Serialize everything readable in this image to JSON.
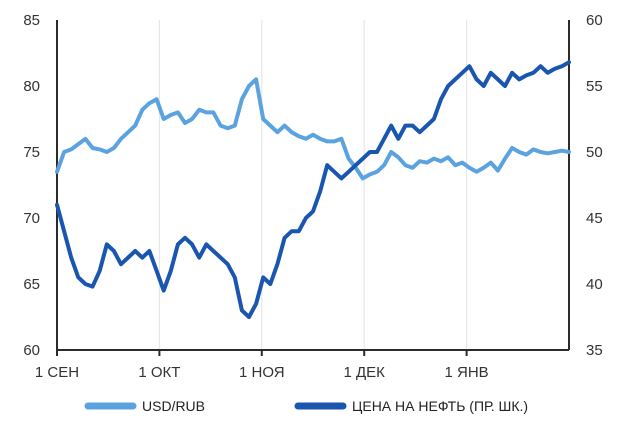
{
  "chart_data": {
    "type": "line",
    "title": "",
    "xlabel": "",
    "ylabel": "",
    "x_ticks": [
      "1 СЕН",
      "1 ОКТ",
      "1 НОЯ",
      "1 ДЕК",
      "1 ЯНВ"
    ],
    "y_left_ticks": [
      "60",
      "65",
      "70",
      "75",
      "80",
      "85"
    ],
    "y_right_ticks": [
      "35",
      "40",
      "45",
      "50",
      "55",
      "60"
    ],
    "y_left_lim": [
      60,
      85
    ],
    "y_right_lim": [
      35,
      60
    ],
    "x_lim": [
      0,
      144
    ],
    "grid": "vertical",
    "legend_position": "bottom",
    "series": [
      {
        "name": "USD/RUB",
        "axis": "left",
        "color": "#5ba3e0",
        "x": [
          0,
          2,
          4,
          6,
          8,
          10,
          12,
          14,
          16,
          18,
          20,
          22,
          24,
          26,
          28,
          30,
          32,
          34,
          36,
          38,
          40,
          42,
          44,
          46,
          48,
          50,
          52,
          54,
          56,
          58,
          60,
          62,
          64,
          66,
          68,
          70,
          72,
          74,
          76,
          78,
          80,
          82,
          84,
          86,
          88,
          90,
          92,
          94,
          96,
          98,
          100,
          102,
          104,
          106,
          108,
          110,
          112,
          114,
          116,
          118,
          120,
          122,
          124,
          126,
          128,
          130,
          132,
          134,
          136,
          138,
          140,
          142,
          144
        ],
        "values": [
          73.5,
          75.0,
          75.2,
          75.6,
          76.0,
          75.3,
          75.2,
          75.0,
          75.3,
          76.0,
          76.5,
          77.0,
          78.2,
          78.7,
          79.0,
          77.5,
          77.8,
          78.0,
          77.2,
          77.5,
          78.2,
          78.0,
          78.0,
          77.0,
          76.8,
          77.0,
          79.0,
          80.0,
          80.5,
          77.5,
          77.0,
          76.5,
          77.0,
          76.5,
          76.2,
          76.0,
          76.3,
          76.0,
          75.8,
          75.8,
          76.0,
          74.5,
          73.8,
          73.0,
          73.3,
          73.5,
          74.0,
          75.0,
          74.6,
          74.0,
          73.8,
          74.3,
          74.2,
          74.5,
          74.3,
          74.6,
          74.0,
          74.2,
          73.8,
          73.5,
          73.8,
          74.2,
          73.6,
          74.5,
          75.3,
          75.0,
          74.8,
          75.2,
          75.0,
          74.9,
          75.0,
          75.1,
          75.0
        ]
      },
      {
        "name": "ЦЕНА НА НЕФТЬ (ПР. ШК.)",
        "axis": "right",
        "color": "#1a56b0",
        "x": [
          0,
          2,
          4,
          6,
          8,
          10,
          12,
          14,
          16,
          18,
          20,
          22,
          24,
          26,
          28,
          30,
          32,
          34,
          36,
          38,
          40,
          42,
          44,
          46,
          48,
          50,
          52,
          54,
          56,
          58,
          60,
          62,
          64,
          66,
          68,
          70,
          72,
          74,
          76,
          78,
          80,
          82,
          84,
          86,
          88,
          90,
          92,
          94,
          96,
          98,
          100,
          102,
          104,
          106,
          108,
          110,
          112,
          114,
          116,
          118,
          120,
          122,
          124,
          126,
          128,
          130,
          132,
          134,
          136,
          138,
          140,
          142,
          144
        ],
        "values": [
          46.0,
          44.0,
          42.0,
          40.5,
          40.0,
          39.8,
          41.0,
          43.0,
          42.5,
          41.5,
          42.0,
          42.5,
          42.0,
          42.5,
          41.0,
          39.5,
          41.0,
          43.0,
          43.5,
          43.0,
          42.0,
          43.0,
          42.5,
          42.0,
          41.5,
          40.5,
          38.0,
          37.5,
          38.5,
          40.5,
          40.0,
          41.5,
          43.5,
          44.0,
          44.0,
          45.0,
          45.5,
          47.0,
          49.0,
          48.5,
          48.0,
          48.5,
          49.0,
          49.5,
          50.0,
          50.0,
          51.0,
          52.0,
          51.0,
          52.0,
          52.0,
          51.5,
          52.0,
          52.5,
          54.0,
          55.0,
          55.5,
          56.0,
          56.5,
          55.5,
          55.0,
          56.0,
          55.5,
          55.0,
          56.0,
          55.5,
          55.8,
          56.0,
          56.5,
          56.0,
          56.3,
          56.5,
          56.8
        ]
      }
    ]
  }
}
